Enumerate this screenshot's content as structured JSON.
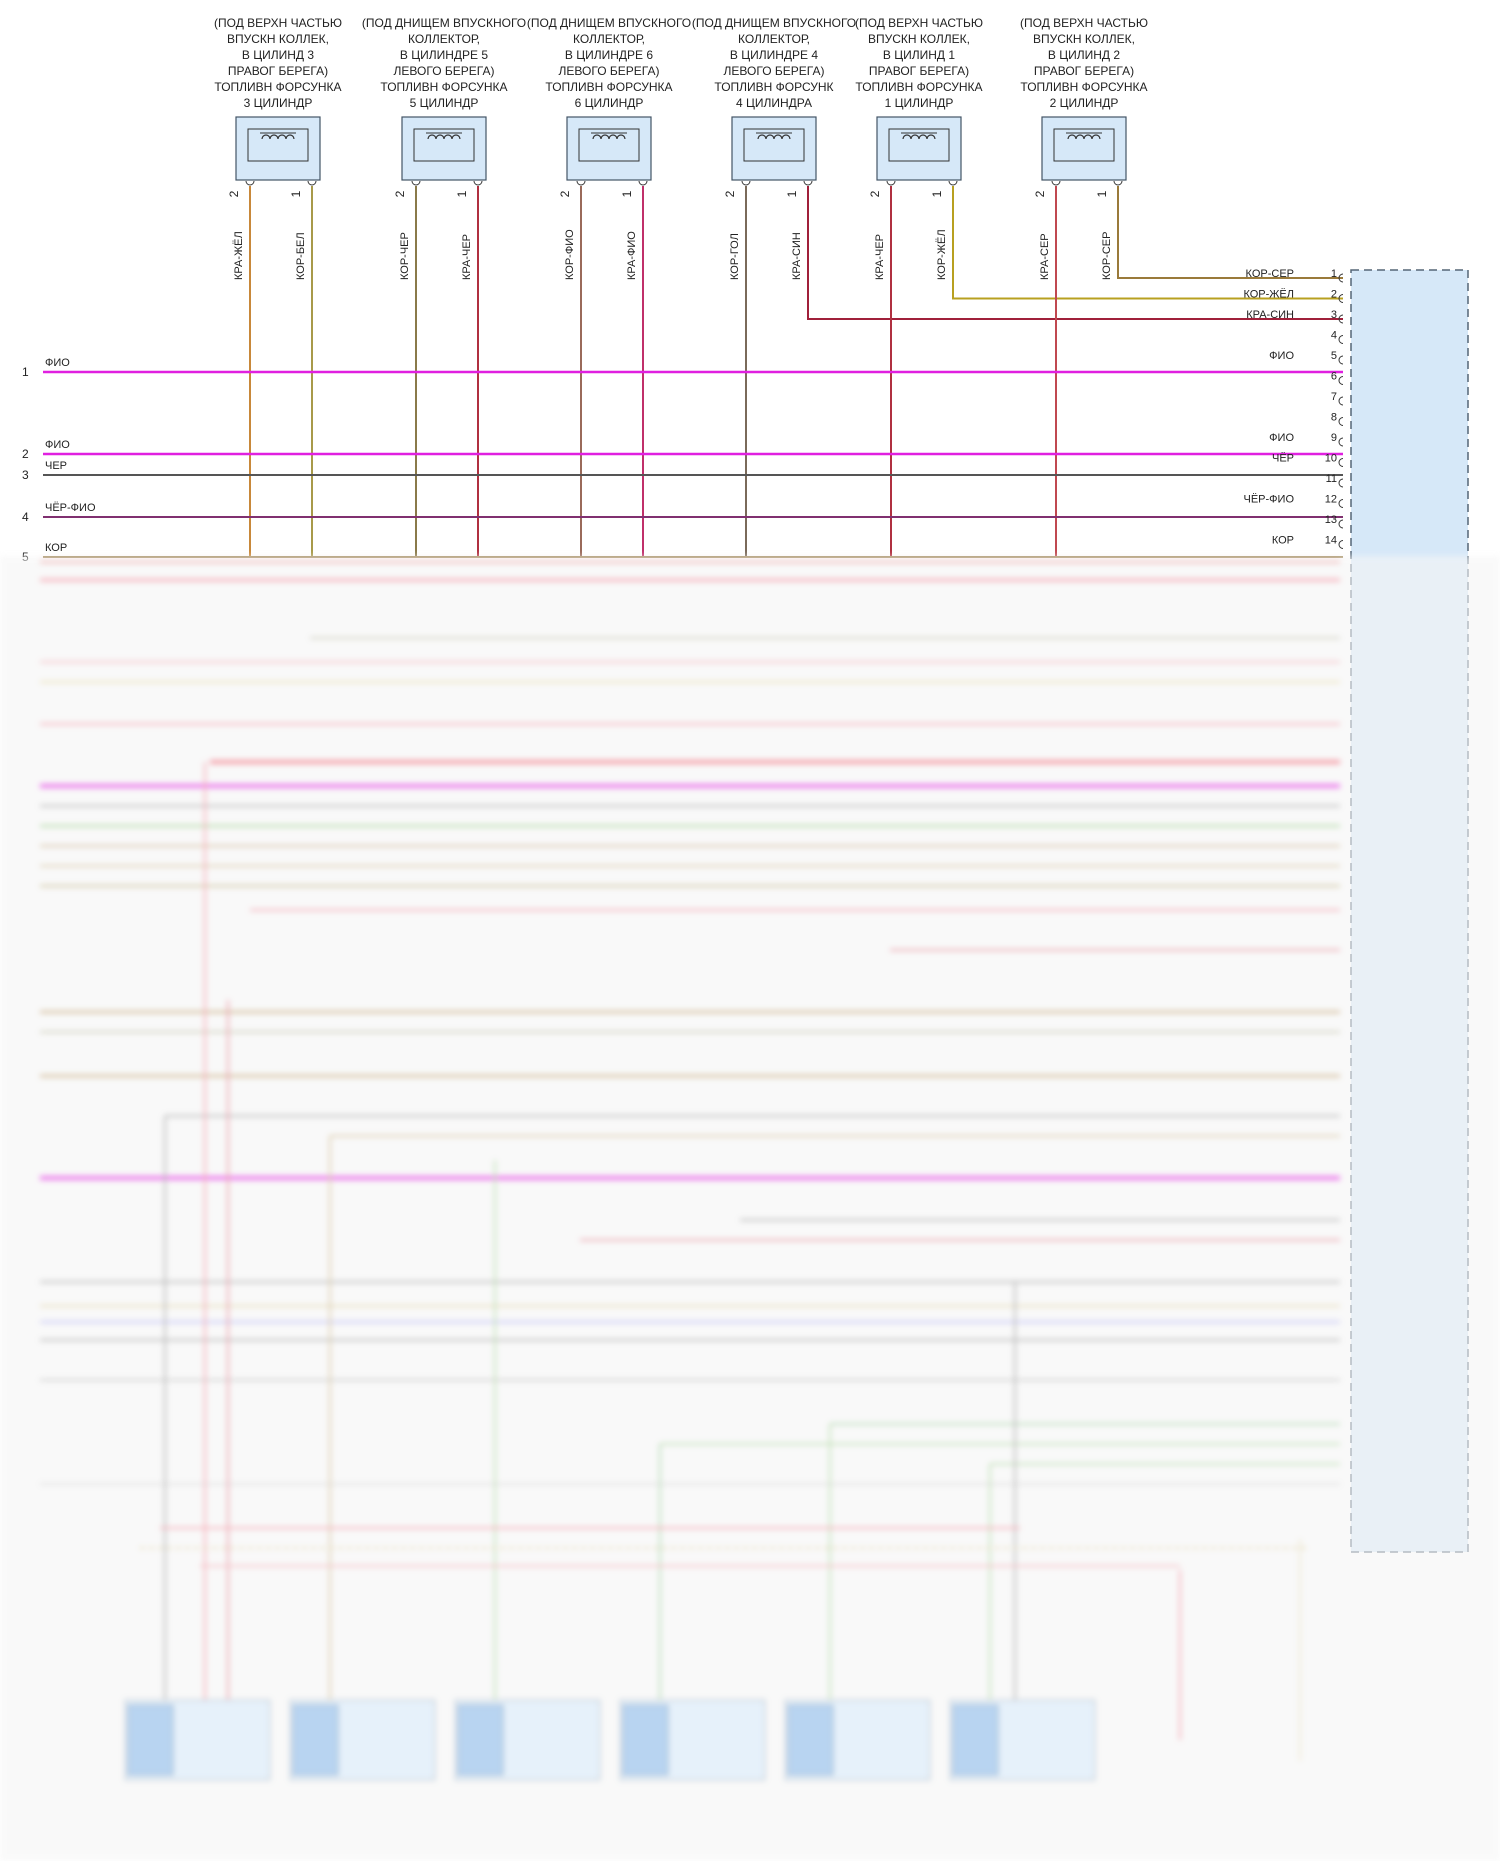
{
  "injectors": [
    {
      "label": [
        "(ПОД ВЕРХН ЧАСТЬЮ",
        "ВПУСКН КОЛЛЕК,",
        "В ЦИЛИНД 3",
        "ПРАВОГ БЕРЕГА)",
        "ТОПЛИВН ФОРСУНКА",
        "3 ЦИЛИНДР"
      ],
      "pin2": "2",
      "pin1": "1",
      "wire2": "КРА-ЖЁЛ",
      "wire1": "КОР-БЕЛ",
      "c2": "#c8883a",
      "c1": "#a89a4a"
    },
    {
      "label": [
        "(ПОД ДНИЩЕМ ВПУСКНОГО",
        "КОЛЛЕКТОР,",
        "В ЦИЛИНДРЕ 5",
        "ЛЕВОГО БЕРЕГА)",
        "ТОПЛИВН ФОРСУНКА",
        "5 ЦИЛИНДР"
      ],
      "pin2": "2",
      "pin1": "1",
      "wire2": "КОР-ЧЕР",
      "wire1": "КРА-ЧЕР",
      "c2": "#8a7a4a",
      "c1": "#b03040"
    },
    {
      "label": [
        "(ПОД ДНИЩЕМ ВПУСКНОГО",
        "КОЛЛЕКТОР,",
        "В ЦИЛИНДРЕ 6",
        "ЛЕВОГО БЕРЕГА)",
        "ТОПЛИВН ФОРСУНКА",
        "6 ЦИЛИНДР"
      ],
      "pin2": "2",
      "pin1": "1",
      "wire2": "КОР-ФИО",
      "wire1": "КРА-ФИО",
      "c2": "#9a6a5a",
      "c1": "#c0306a"
    },
    {
      "label": [
        "(ПОД ДНИЩЕМ ВПУСКНОГО",
        "КОЛЛЕКТОР,",
        "В ЦИЛИНДРЕ 4",
        "ЛЕВОГО БЕРЕГА)",
        "ТОПЛИВН ФОРСУНК",
        "4 ЦИЛИНДРА"
      ],
      "pin2": "2",
      "pin1": "1",
      "wire2": "КОР-ГОЛ",
      "wire1": "КРА-СИН",
      "c2": "#7a6a5a",
      "c1": "#a0203a"
    },
    {
      "label": [
        "(ПОД ВЕРХН ЧАСТЬЮ",
        "ВПУСКН КОЛЛЕК,",
        "В ЦИЛИНД 1",
        "ПРАВОГ БЕРЕГА)",
        "ТОПЛИВН ФОРСУНКА",
        "1 ЦИЛИНДР"
      ],
      "pin2": "2",
      "pin1": "1",
      "wire2": "КРА-ЧЕР",
      "wire1": "КОР-ЖЁЛ",
      "c2": "#b03040",
      "c1": "#b8a020"
    },
    {
      "label": [
        "(ПОД ВЕРХН ЧАСТЬЮ",
        "ВПУСКН КОЛЛЕК,",
        "В ЦИЛИНД 2",
        "ПРАВОГ БЕРЕГА)",
        "ТОПЛИВН ФОРСУНКА",
        "2 ЦИЛИНДР"
      ],
      "pin2": "2",
      "pin1": "1",
      "wire2": "КРА-СЕР",
      "wire1": "КОР-СЕР",
      "c2": "#c04850",
      "c1": "#9a7a3a"
    }
  ],
  "left_lines": [
    {
      "num": "1",
      "name": "ФИО",
      "color": "#e020e0"
    },
    {
      "num": "2",
      "name": "ФИО",
      "color": "#e020e0"
    },
    {
      "num": "3",
      "name": "ЧЕР",
      "color": "#555555"
    },
    {
      "num": "4",
      "name": "ЧЁР-ФИО",
      "color": "#803070"
    },
    {
      "num": "5",
      "name": "КОР",
      "color": "#a08a5a"
    }
  ],
  "right_pins": [
    {
      "num": "1",
      "name": "КОР-СЕР"
    },
    {
      "num": "2",
      "name": "КОР-ЖЁЛ"
    },
    {
      "num": "3",
      "name": "КРА-СИН"
    },
    {
      "num": "4",
      "name": ""
    },
    {
      "num": "5",
      "name": "ФИО"
    },
    {
      "num": "6",
      "name": ""
    },
    {
      "num": "7",
      "name": ""
    },
    {
      "num": "8",
      "name": ""
    },
    {
      "num": "9",
      "name": "ФИО"
    },
    {
      "num": "10",
      "name": "ЧЁР"
    },
    {
      "num": "11",
      "name": ""
    },
    {
      "num": "12",
      "name": "ЧЁР-ФИО"
    },
    {
      "num": "13",
      "name": ""
    },
    {
      "num": "14",
      "name": "КОР"
    }
  ],
  "colors": {
    "ecu_fill": "#d6e8f8",
    "ecu_stroke": "#556677",
    "injector_fill": "#d6e8f8",
    "pink_wire": "#f08090",
    "magenta_wire": "#e020e0"
  }
}
